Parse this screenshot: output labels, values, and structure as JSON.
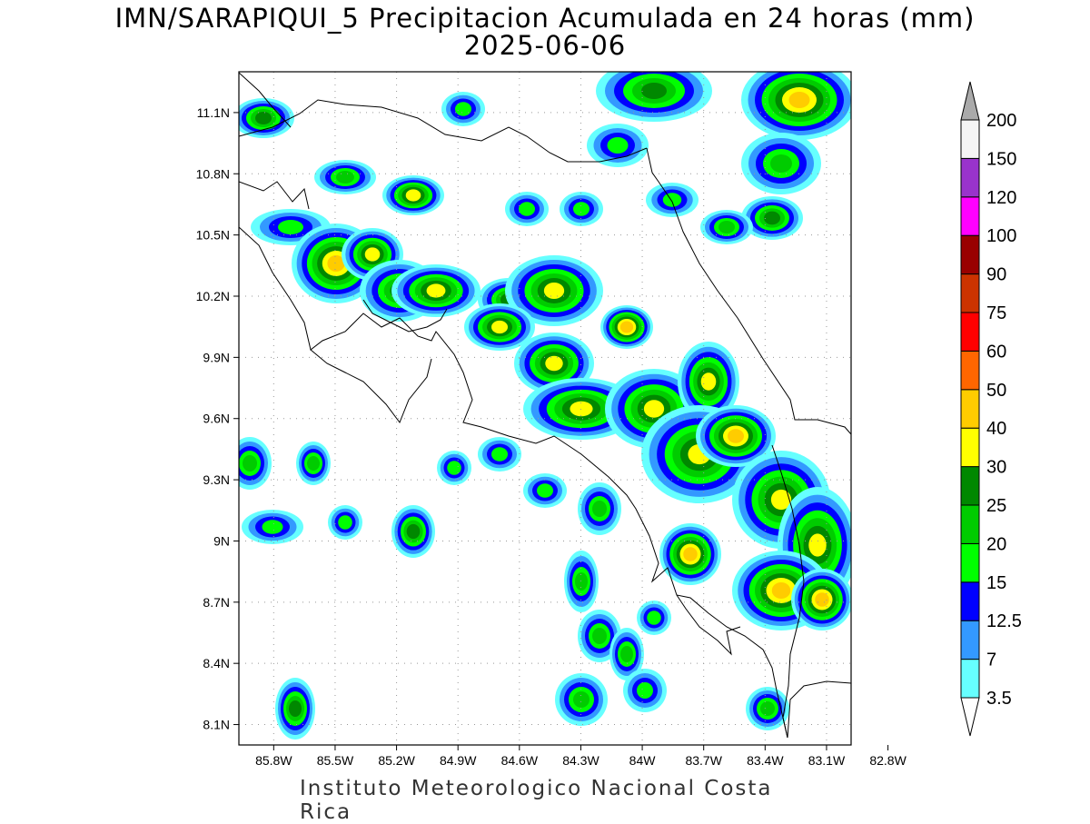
{
  "map": {
    "title_line1": "IMN/SARAPIQUI_5 Precipitacion Acumulada en 24 horas (mm)",
    "title_line2": "2025-06-06",
    "footer": "Instituto Meteorologico Nacional Costa Rica",
    "lat_labels": [
      "11.1N",
      "10.8N",
      "10.5N",
      "10.2N",
      "9.9N",
      "9.6N",
      "9.3N",
      "9N",
      "8.7N",
      "8.4N",
      "8.1N"
    ],
    "lat_values": [
      11.1,
      10.8,
      10.5,
      10.2,
      9.9,
      9.6,
      9.3,
      9.0,
      8.7,
      8.4,
      8.1
    ],
    "lon_labels": [
      "85.8W",
      "85.5W",
      "85.2W",
      "84.9W",
      "84.6W",
      "84.3W",
      "84W",
      "83.7W",
      "83.4W",
      "83.1W",
      "82.8W"
    ],
    "lon_values": [
      -85.8,
      -85.5,
      -85.2,
      -84.9,
      -84.6,
      -84.3,
      -84.0,
      -83.7,
      -83.4,
      -83.1,
      -82.8
    ],
    "extent": {
      "lon_min": -85.97,
      "lon_max": -82.98,
      "lat_min": 8.0,
      "lat_max": 11.3
    }
  },
  "colorbar": {
    "labels": [
      "3.5",
      "7",
      "12.5",
      "15",
      "20",
      "25",
      "30",
      "40",
      "50",
      "60",
      "75",
      "90",
      "100",
      "120",
      "150",
      "200"
    ],
    "colors": [
      "#ffffff",
      "#66ffff",
      "#3399ff",
      "#0000ff",
      "#00ff00",
      "#00cc00",
      "#008800",
      "#ffff00",
      "#ffcc00",
      "#ff6600",
      "#ff0000",
      "#cc3300",
      "#990000",
      "#ff00ff",
      "#9933cc",
      "#f5f5f5",
      "#aaaaaa"
    ]
  },
  "colors": {
    "light_cyan": "#66ffff",
    "blue_7": "#3399ff",
    "blue_12": "#0000ff",
    "green_15": "#00ff00",
    "green_20": "#00cc00",
    "green_25": "#008800",
    "yellow_30": "#ffff00",
    "gold_40": "#ffcc00",
    "orange_50": "#ff6600",
    "red_60": "#ff0000"
  }
}
